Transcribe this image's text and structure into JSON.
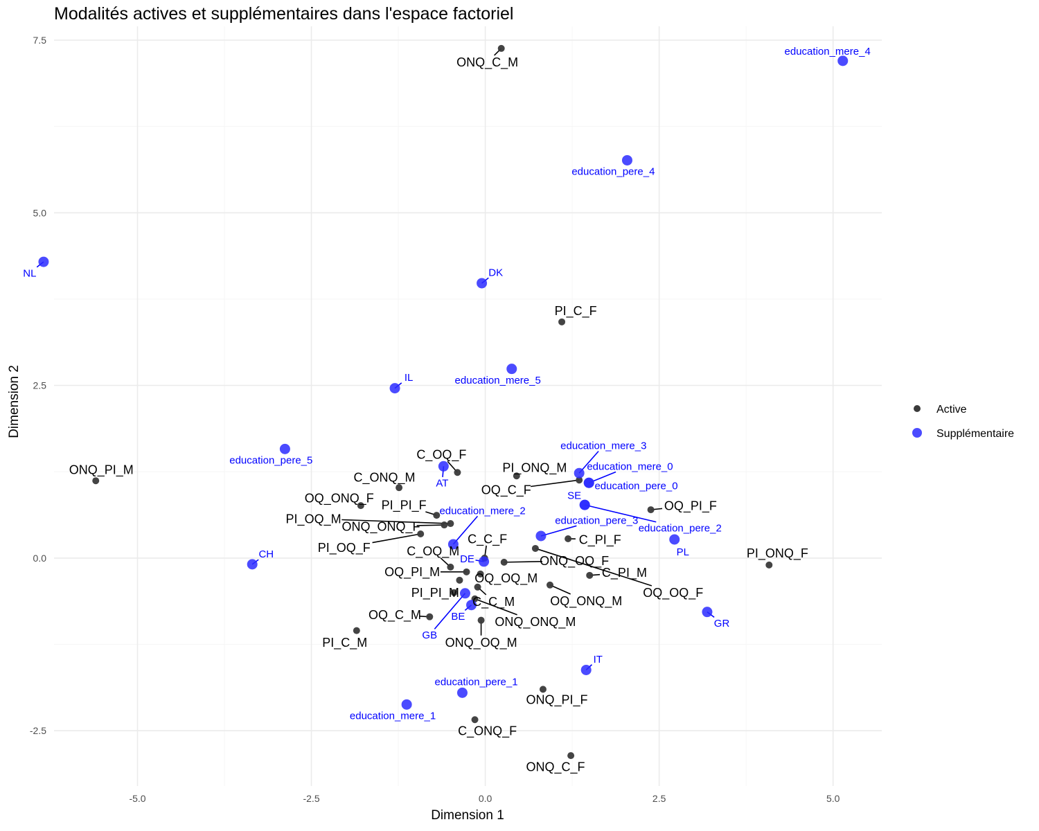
{
  "chart_data": {
    "type": "scatter",
    "title": "Modalités actives et supplémentaires dans l'espace factoriel",
    "xlabel": "Dimension 1",
    "ylabel": "Dimension 2",
    "xlim": [
      -6.2,
      5.7
    ],
    "ylim": [
      -3.3,
      7.7
    ],
    "x_ticks": [
      -5.0,
      -2.5,
      0.0,
      2.5,
      5.0
    ],
    "x_tick_labels": [
      "-5.0",
      "-2.5",
      "0.0",
      "2.5",
      "5.0"
    ],
    "y_ticks": [
      -2.5,
      0.0,
      2.5,
      5.0,
      7.5
    ],
    "y_tick_labels": [
      "-2.5",
      "0.0",
      "2.5",
      "5.0",
      "7.5"
    ],
    "grid": true,
    "legend_position": "right",
    "colors": {
      "active": "#3a3a3a",
      "supplementary": "#2b2bff",
      "supp_label": "#0000ff"
    },
    "series": [
      {
        "name": "Active",
        "points": [
          {
            "label": "ONQ_C_M",
            "x": 0.23,
            "y": 7.38,
            "lx": 0.03,
            "ly": 7.18
          },
          {
            "label": "PI_C_F",
            "x": 1.1,
            "y": 3.42,
            "lx": 1.3,
            "ly": 3.58
          },
          {
            "label": "ONQ_PI_M",
            "x": -5.6,
            "y": 1.12,
            "lx": -5.52,
            "ly": 1.28
          },
          {
            "label": "C_OQ_F",
            "x": -0.4,
            "y": 1.24,
            "lx": -0.63,
            "ly": 1.5
          },
          {
            "label": "C_ONQ_M",
            "x": -1.24,
            "y": 1.02,
            "lx": -1.45,
            "ly": 1.17
          },
          {
            "label": "PI_ONQ_M",
            "x": 0.45,
            "y": 1.19,
            "lx": 0.71,
            "ly": 1.31
          },
          {
            "label": "OQ_C_F",
            "x": 1.35,
            "y": 1.13,
            "lx": 0.3,
            "ly": 0.99
          },
          {
            "label": "OQ_ONQ_F",
            "x": -1.79,
            "y": 0.76,
            "lx": -2.1,
            "ly": 0.87
          },
          {
            "label": "PI_PI_F",
            "x": -0.7,
            "y": 0.62,
            "lx": -1.17,
            "ly": 0.77
          },
          {
            "label": "PI_OQ_M",
            "x": -0.5,
            "y": 0.5,
            "lx": -2.47,
            "ly": 0.57
          },
          {
            "label": "ONQ_ONQ_F",
            "x": -0.59,
            "y": 0.48,
            "lx": -1.5,
            "ly": 0.46
          },
          {
            "label": "PI_OQ_F",
            "x": -0.93,
            "y": 0.35,
            "lx": -2.03,
            "ly": 0.15
          },
          {
            "label": "OQ_PI_F",
            "x": 2.38,
            "y": 0.7,
            "lx": 2.95,
            "ly": 0.76
          },
          {
            "label": "C_C_F",
            "x": -0.01,
            "y": 0.0,
            "lx": 0.03,
            "ly": 0.28
          },
          {
            "label": "C_PI_F",
            "x": 1.19,
            "y": 0.28,
            "lx": 1.65,
            "ly": 0.27
          },
          {
            "label": "C_OQ_M",
            "x": -0.5,
            "y": -0.13,
            "lx": -0.75,
            "ly": 0.1
          },
          {
            "label": "ONQ_OQ_F",
            "x": 0.27,
            "y": -0.06,
            "lx": 1.28,
            "ly": -0.04
          },
          {
            "label": "PI_ONQ_F",
            "x": 4.08,
            "y": -0.1,
            "lx": 4.2,
            "ly": 0.07
          },
          {
            "label": "C_PI_M",
            "x": 1.5,
            "y": -0.25,
            "lx": 2.0,
            "ly": -0.21
          },
          {
            "label": "OQ_PI_M",
            "x": -0.27,
            "y": -0.2,
            "lx": -1.05,
            "ly": -0.2
          },
          {
            "label": "OQ_OQ_M",
            "x": -0.07,
            "y": -0.23,
            "lx": 0.3,
            "ly": -0.29
          },
          {
            "label": "ONQ_PI_M",
            "x": -0.37,
            "y": -0.32,
            "lx": -0.37,
            "ly": -0.32,
            "hidden": true
          },
          {
            "label": "OQ_ONQ_M",
            "x": 0.93,
            "y": -0.39,
            "lx": 1.45,
            "ly": -0.62
          },
          {
            "label": "OQ_OQ_F",
            "x": 0.72,
            "y": 0.14,
            "lx": 2.7,
            "ly": -0.5
          },
          {
            "label": "PI_PI_M",
            "x": -0.45,
            "y": -0.5,
            "lx": -0.72,
            "ly": -0.5
          },
          {
            "label": "C_C_M",
            "x": -0.11,
            "y": -0.42,
            "lx": 0.12,
            "ly": -0.63
          },
          {
            "label": "ONQ_ONQ_M",
            "x": -0.15,
            "y": -0.59,
            "lx": 0.72,
            "ly": -0.92
          },
          {
            "label": "OQ_C_M",
            "x": -0.8,
            "y": -0.85,
            "lx": -1.3,
            "ly": -0.82
          },
          {
            "label": "ONQ_OQ_M",
            "x": -0.06,
            "y": -0.9,
            "lx": -0.06,
            "ly": -1.22
          },
          {
            "label": "PI_C_M",
            "x": -1.85,
            "y": -1.05,
            "lx": -2.02,
            "ly": -1.22
          },
          {
            "label": "ONQ_PI_F",
            "x": 0.83,
            "y": -1.9,
            "lx": 1.03,
            "ly": -2.05
          },
          {
            "label": "C_ONQ_F",
            "x": -0.15,
            "y": -2.34,
            "lx": 0.03,
            "ly": -2.5
          },
          {
            "label": "ONQ_C_F",
            "x": 1.23,
            "y": -2.86,
            "lx": 1.01,
            "ly": -3.02
          }
        ]
      },
      {
        "name": "Supplémentaire",
        "points": [
          {
            "label": "education_mere_4",
            "x": 5.14,
            "y": 7.2,
            "lx": 4.92,
            "ly": 7.34
          },
          {
            "label": "education_pere_4",
            "x": 2.04,
            "y": 5.76,
            "lx": 1.84,
            "ly": 5.6
          },
          {
            "label": "NL",
            "x": -6.35,
            "y": 4.29,
            "lx": -6.55,
            "ly": 4.13
          },
          {
            "label": "DK",
            "x": -0.05,
            "y": 3.98,
            "lx": 0.15,
            "ly": 4.14
          },
          {
            "label": "IL",
            "x": -1.3,
            "y": 2.46,
            "lx": -1.1,
            "ly": 2.62
          },
          {
            "label": "education_mere_5",
            "x": 0.38,
            "y": 2.74,
            "lx": 0.18,
            "ly": 2.58
          },
          {
            "label": "education_pere_5",
            "x": -2.88,
            "y": 1.58,
            "lx": -3.08,
            "ly": 1.42
          },
          {
            "label": "AT",
            "x": -0.6,
            "y": 1.33,
            "lx": -0.62,
            "ly": 1.09
          },
          {
            "label": "education_mere_3",
            "x": 1.35,
            "y": 1.23,
            "lx": 1.7,
            "ly": 1.63
          },
          {
            "label": "education_mere_0",
            "x": 1.49,
            "y": 1.09,
            "lx": 2.08,
            "ly": 1.33
          },
          {
            "label": "education_pere_0",
            "x": 1.49,
            "y": 1.09,
            "lx": 2.17,
            "ly": 1.05
          },
          {
            "label": "SE",
            "x": 1.43,
            "y": 0.77,
            "lx": 1.28,
            "ly": 0.91
          },
          {
            "label": "education_mere_2",
            "x": -0.46,
            "y": 0.2,
            "lx": -0.04,
            "ly": 0.69
          },
          {
            "label": "education_pere_3",
            "x": 0.8,
            "y": 0.32,
            "lx": 1.6,
            "ly": 0.55
          },
          {
            "label": "education_pere_2",
            "x": 1.43,
            "y": 0.77,
            "lx": 2.8,
            "ly": 0.44
          },
          {
            "label": "PL",
            "x": 2.72,
            "y": 0.27,
            "lx": 2.84,
            "ly": 0.09
          },
          {
            "label": "CH",
            "x": -3.35,
            "y": -0.09,
            "lx": -3.15,
            "ly": 0.06
          },
          {
            "label": "DE",
            "x": -0.02,
            "y": -0.05,
            "lx": -0.26,
            "ly": -0.01
          },
          {
            "label": "BE",
            "x": -0.2,
            "y": -0.68,
            "lx": -0.39,
            "ly": -0.84
          },
          {
            "label": "GB",
            "x": -0.29,
            "y": -0.51,
            "lx": -0.8,
            "ly": -1.11
          },
          {
            "label": "GR",
            "x": 3.19,
            "y": -0.78,
            "lx": 3.4,
            "ly": -0.94
          },
          {
            "label": "IT",
            "x": 1.45,
            "y": -1.62,
            "lx": 1.62,
            "ly": -1.46
          },
          {
            "label": "education_pere_1",
            "x": -0.33,
            "y": -1.95,
            "lx": -0.13,
            "ly": -1.79
          },
          {
            "label": "education_mere_1",
            "x": -1.13,
            "y": -2.12,
            "lx": -1.33,
            "ly": -2.28
          }
        ]
      }
    ]
  }
}
